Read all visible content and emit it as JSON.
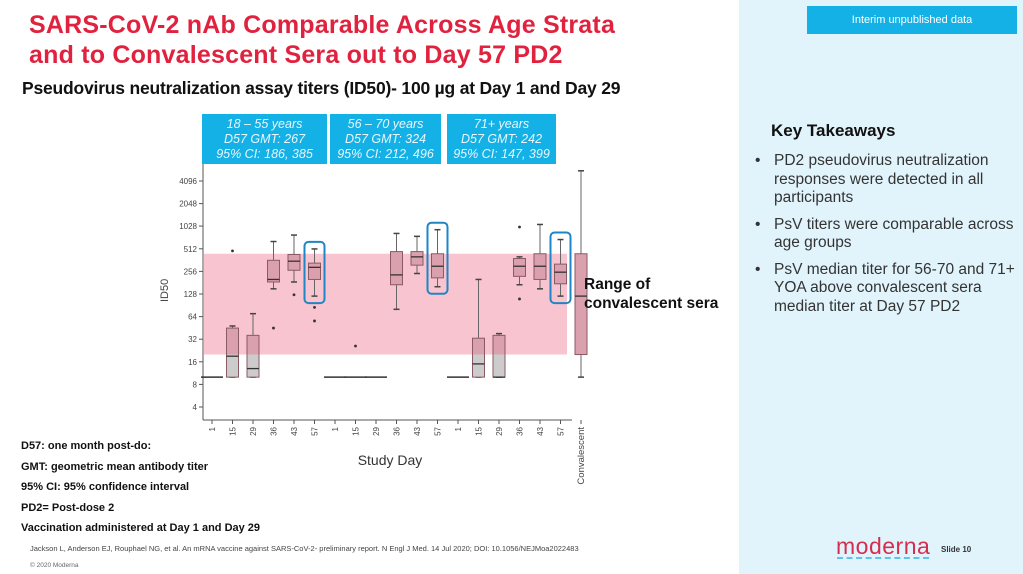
{
  "slide": {
    "title_lines": [
      "SARS-CoV-2 nAb Comparable Across Age Strata",
      "and to Convalescent Sera out to Day 57 PD2"
    ],
    "subtitle": "Pseudovirus neutralization assay titers (ID50)- 100 µg at Day 1 and Day 29",
    "badge": "Interim unpublished data",
    "range_label_lines": [
      "Range of",
      "convalescent sera"
    ],
    "key_takeaways": {
      "title": "Key Takeaways",
      "bullet": "•",
      "items": [
        "PD2 pseudovirus neutralization responses were detected in all participants",
        "PsV titers were comparable across age groups",
        "PsV median titer for 56-70 and 71+ YOA above convalescent sera median titer at Day 57 PD2"
      ]
    },
    "notes": [
      "D57: one month post-do:",
      "GMT: geometric mean antibody titer",
      "95% CI: 95% confidence interval",
      "PD2= Post-dose 2",
      "Vaccination administered at Day 1 and Day 29"
    ],
    "citation": "Jackson L, Anderson EJ, Rouphael NG, et al.  An mRNA vaccine against SARS-CoV-2- preliminary report.  N Engl J Med. 14 Jul 2020; DOI: 10.1056/NEJMoa2022483",
    "copyright": "© 2020 Moderna",
    "logo": "moderna",
    "slide_number": "Slide   10"
  },
  "colors": {
    "title": "#e0223f",
    "accent_blue": "#14b1e7",
    "panel_bg": "#e1f4fc",
    "convalescent_band": "#f7c4cf",
    "box_pink": "#dba0ad",
    "box_gray": "#cccccc",
    "highlight_outline": "#1e86c4"
  },
  "chart_data": {
    "type": "box",
    "title": "Pseudovirus neutralization assay titers (ID50)- 100 µg at Day 1 and Day 29",
    "xlabel": "Study Day",
    "ylabel": "ID50",
    "yscale": "log2",
    "ylim": [
      3,
      8192
    ],
    "yticks": [
      4,
      8,
      16,
      32,
      64,
      128,
      256,
      512,
      1028,
      2048,
      4096
    ],
    "ytick_labels": [
      "4",
      "8",
      "16",
      "32",
      "64",
      "128",
      "256",
      "512",
      "1028",
      "2048",
      "4096"
    ],
    "convalescent_range": [
      20,
      440
    ],
    "groups": [
      {
        "label": "18 – 55 years",
        "gmt": "D57 GMT: 267",
        "ci": "95% CI: 186, 385"
      },
      {
        "label": "56 – 70 years",
        "gmt": "D57 GMT: 324",
        "ci": "95% CI: 212, 496"
      },
      {
        "label": "71+ years",
        "gmt": "D57 GMT: 242",
        "ci": "95% CI: 147, 399"
      }
    ],
    "categories": [
      "1",
      "15",
      "29",
      "36",
      "43",
      "57",
      "1",
      "15",
      "29",
      "36",
      "43",
      "57",
      "1",
      "15",
      "29",
      "36",
      "43",
      "57",
      "Convalescent"
    ],
    "series": [
      {
        "group": 0,
        "day": "1",
        "min": 10,
        "q1": 10,
        "median": 10,
        "q3": 10,
        "max": 10,
        "outliers": [],
        "highlight": false
      },
      {
        "group": 0,
        "day": "15",
        "min": 10,
        "q1": 10,
        "median": 19,
        "q3": 45,
        "max": 48,
        "outliers": [
          480
        ],
        "highlight": false
      },
      {
        "group": 0,
        "day": "29",
        "min": 10,
        "q1": 10,
        "median": 13,
        "q3": 36,
        "max": 70,
        "outliers": [],
        "highlight": false
      },
      {
        "group": 0,
        "day": "36",
        "min": 150,
        "q1": 185,
        "median": 200,
        "q3": 360,
        "max": 640,
        "outliers": [
          45
        ],
        "highlight": false
      },
      {
        "group": 0,
        "day": "43",
        "min": 185,
        "q1": 265,
        "median": 350,
        "q3": 430,
        "max": 780,
        "outliers": [
          125
        ],
        "highlight": false
      },
      {
        "group": 0,
        "day": "57",
        "min": 120,
        "q1": 200,
        "median": 290,
        "q3": 330,
        "max": 510,
        "outliers": [
          85,
          56
        ],
        "highlight": true
      },
      {
        "group": 1,
        "day": "1",
        "min": 10,
        "q1": 10,
        "median": 10,
        "q3": 10,
        "max": 10,
        "outliers": [],
        "highlight": false
      },
      {
        "group": 1,
        "day": "15",
        "min": 10,
        "q1": 10,
        "median": 10,
        "q3": 10,
        "max": 10,
        "outliers": [
          26
        ],
        "highlight": false
      },
      {
        "group": 1,
        "day": "29",
        "min": 10,
        "q1": 10,
        "median": 10,
        "q3": 10,
        "max": 10,
        "outliers": [],
        "highlight": false
      },
      {
        "group": 1,
        "day": "36",
        "min": 80,
        "q1": 170,
        "median": 230,
        "q3": 470,
        "max": 820,
        "outliers": [],
        "highlight": false
      },
      {
        "group": 1,
        "day": "43",
        "min": 240,
        "q1": 310,
        "median": 400,
        "q3": 470,
        "max": 750,
        "outliers": [],
        "highlight": false
      },
      {
        "group": 1,
        "day": "57",
        "min": 160,
        "q1": 210,
        "median": 300,
        "q3": 440,
        "max": 920,
        "outliers": [],
        "highlight": true
      },
      {
        "group": 2,
        "day": "1",
        "min": 10,
        "q1": 10,
        "median": 10,
        "q3": 10,
        "max": 10,
        "outliers": [],
        "highlight": false
      },
      {
        "group": 2,
        "day": "15",
        "min": 10,
        "q1": 10,
        "median": 15,
        "q3": 33,
        "max": 200,
        "outliers": [],
        "highlight": false
      },
      {
        "group": 2,
        "day": "29",
        "min": 10,
        "q1": 10,
        "median": 10,
        "q3": 36,
        "max": 38,
        "outliers": [],
        "highlight": false
      },
      {
        "group": 2,
        "day": "36",
        "min": 170,
        "q1": 220,
        "median": 300,
        "q3": 380,
        "max": 400,
        "outliers": [
          1000,
          110
        ],
        "highlight": false
      },
      {
        "group": 2,
        "day": "43",
        "min": 150,
        "q1": 200,
        "median": 300,
        "q3": 440,
        "max": 1080,
        "outliers": [],
        "highlight": false
      },
      {
        "group": 2,
        "day": "57",
        "min": 120,
        "q1": 175,
        "median": 250,
        "q3": 320,
        "max": 680,
        "outliers": [],
        "highlight": true
      },
      {
        "group": 3,
        "day": "Convalescent",
        "min": 10,
        "q1": 20,
        "median": 120,
        "q3": 440,
        "max": 5600,
        "outliers": [],
        "highlight": false
      }
    ]
  }
}
